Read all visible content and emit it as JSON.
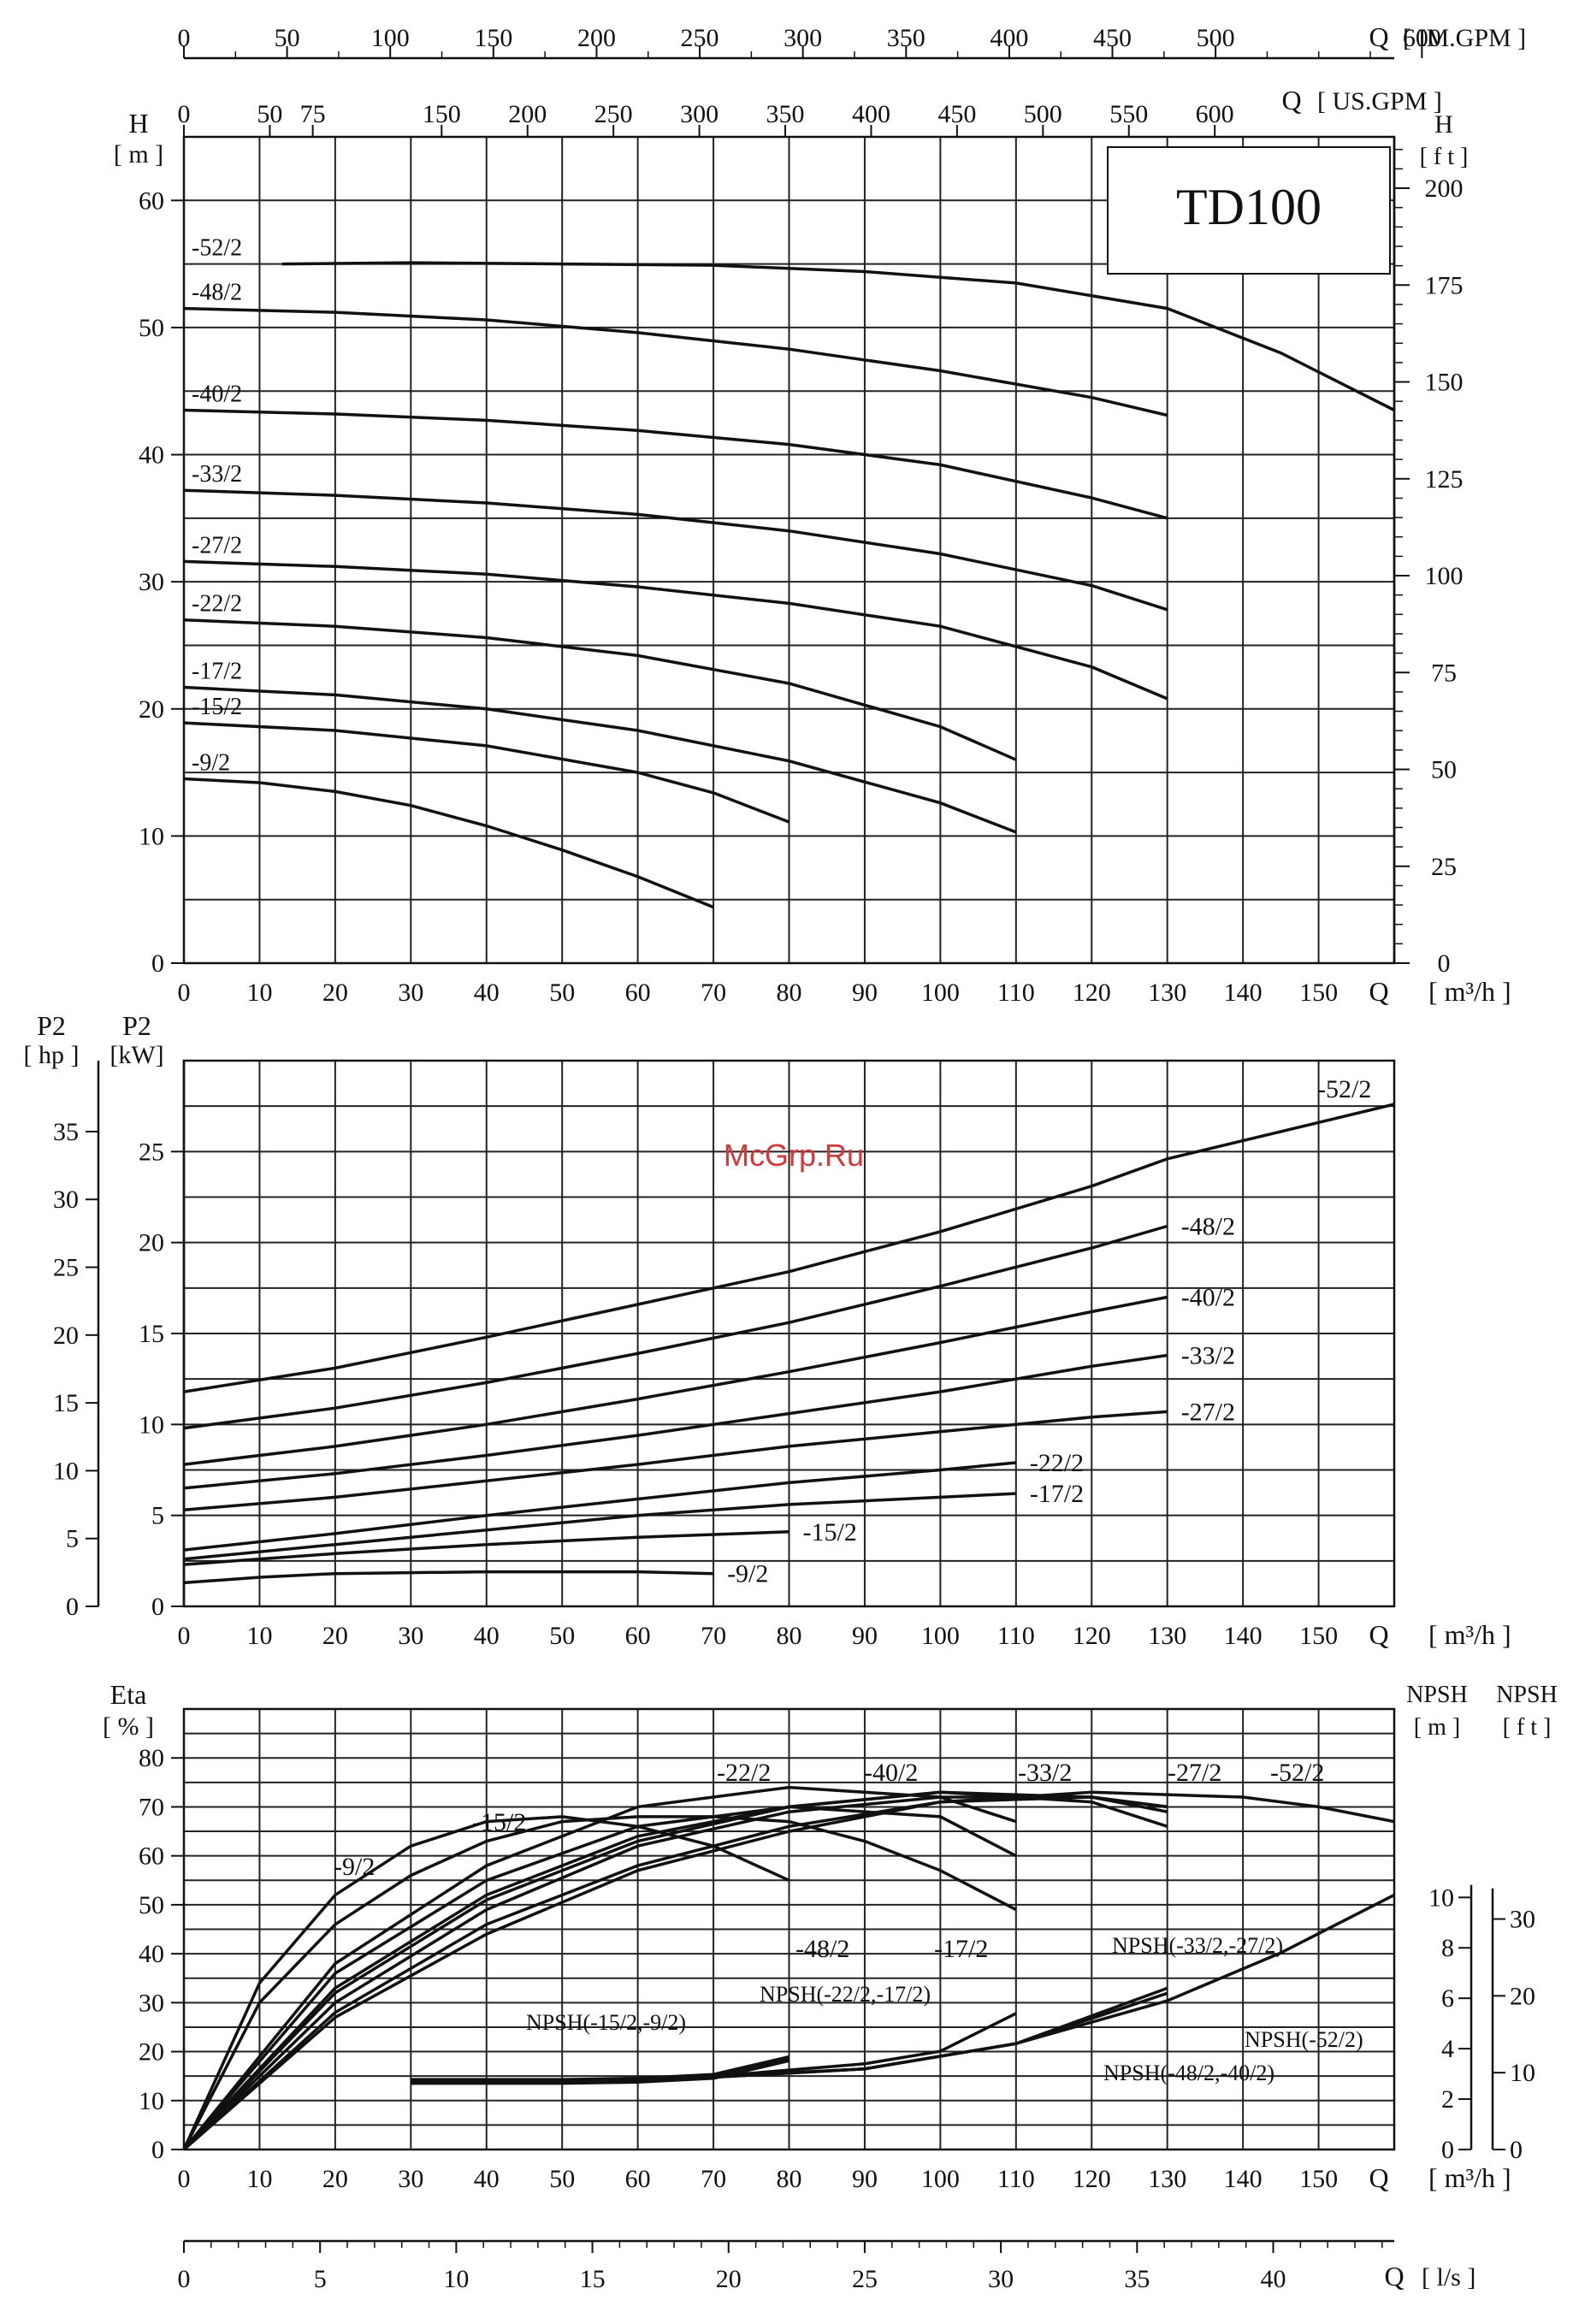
{
  "figure": {
    "model_label": "TD100",
    "watermark": "McGrp.Ru"
  },
  "chart_data": [
    {
      "id": "head",
      "type": "line",
      "title": "",
      "xlabel": "Q [ m³/h ]",
      "x_unit_prefix": "Q",
      "x_unit": "[ m³/h ]",
      "x_ticks": [
        0,
        10,
        20,
        30,
        40,
        50,
        60,
        70,
        80,
        90,
        100,
        110,
        120,
        130,
        140,
        150
      ],
      "xlim": [
        0,
        160
      ],
      "ylabel_left": [
        "H",
        "[ m ]"
      ],
      "y_ticks_left": [
        0,
        10,
        20,
        30,
        40,
        50,
        60
      ],
      "ylim": [
        0,
        65
      ],
      "ylabel_right": [
        "H",
        "[ f t ]"
      ],
      "y_ticks_right": [
        0,
        25,
        50,
        75,
        100,
        125,
        150,
        175,
        200
      ],
      "top_axis_1": {
        "label": "Q [ IM.GPM ]",
        "ticks": [
          0,
          50,
          100,
          150,
          200,
          250,
          300,
          350,
          400,
          450,
          500,
          600
        ]
      },
      "top_axis_2": {
        "label": "Q [ US.GPM ]",
        "ticks": [
          0,
          50,
          75,
          150,
          200,
          250,
          300,
          350,
          400,
          450,
          500,
          550,
          600
        ]
      },
      "grid": true,
      "series": [
        {
          "name": "-52/2",
          "x": [
            13,
            30,
            50,
            70,
            90,
            110,
            130,
            145,
            160
          ],
          "y": [
            55,
            55.1,
            55,
            54.9,
            54.4,
            53.5,
            51.5,
            48,
            43.5
          ]
        },
        {
          "name": "-48/2",
          "x": [
            0,
            20,
            40,
            60,
            80,
            100,
            120,
            130
          ],
          "y": [
            51.5,
            51.2,
            50.6,
            49.6,
            48.3,
            46.6,
            44.5,
            43.1
          ]
        },
        {
          "name": "-40/2",
          "x": [
            0,
            20,
            40,
            60,
            80,
            100,
            120,
            130
          ],
          "y": [
            43.5,
            43.2,
            42.7,
            41.9,
            40.8,
            39.2,
            36.6,
            35
          ]
        },
        {
          "name": "-33/2",
          "x": [
            0,
            20,
            40,
            60,
            80,
            100,
            120,
            130
          ],
          "y": [
            37.2,
            36.8,
            36.2,
            35.3,
            34,
            32.2,
            29.7,
            27.8
          ]
        },
        {
          "name": "-27/2",
          "x": [
            0,
            20,
            40,
            60,
            80,
            100,
            120,
            130
          ],
          "y": [
            31.6,
            31.2,
            30.6,
            29.6,
            28.3,
            26.5,
            23.3,
            20.8
          ]
        },
        {
          "name": "-22/2",
          "x": [
            0,
            20,
            40,
            60,
            80,
            100,
            110
          ],
          "y": [
            27,
            26.5,
            25.6,
            24.2,
            22,
            18.6,
            16
          ]
        },
        {
          "name": "-17/2",
          "x": [
            0,
            20,
            40,
            60,
            80,
            100,
            110
          ],
          "y": [
            21.7,
            21.1,
            20,
            18.3,
            15.9,
            12.6,
            10.3
          ]
        },
        {
          "name": "-15/2",
          "x": [
            0,
            20,
            40,
            60,
            70,
            80
          ],
          "y": [
            18.9,
            18.3,
            17.1,
            15,
            13.4,
            11.1
          ]
        },
        {
          "name": "-9/2",
          "x": [
            0,
            10,
            20,
            30,
            40,
            50,
            60,
            70
          ],
          "y": [
            14.5,
            14.2,
            13.5,
            12.4,
            10.8,
            8.9,
            6.8,
            4.4
          ]
        }
      ]
    },
    {
      "id": "power",
      "type": "line",
      "title": "",
      "xlabel": "Q [ m³/h ]",
      "x_unit_prefix": "Q",
      "x_unit": "[ m³/h ]",
      "x_ticks": [
        0,
        10,
        20,
        30,
        40,
        50,
        60,
        70,
        80,
        90,
        100,
        110,
        120,
        130,
        140,
        150
      ],
      "xlim": [
        0,
        160
      ],
      "ylabel_right_inner": [
        "P2",
        "[kW]"
      ],
      "y_ticks_kw": [
        0,
        5,
        10,
        15,
        20,
        25
      ],
      "ylim_kw": [
        0,
        30
      ],
      "ylabel_left_outer": [
        "P2",
        "[ hp ]"
      ],
      "y_ticks_hp": [
        0,
        5,
        10,
        15,
        20,
        25,
        30,
        35
      ],
      "grid": true,
      "series": [
        {
          "name": "-52/2",
          "x": [
            0,
            20,
            40,
            60,
            80,
            100,
            120,
            130,
            140,
            150,
            160
          ],
          "y": [
            11.8,
            13.1,
            14.8,
            16.6,
            18.4,
            20.6,
            23.1,
            24.6,
            25.6,
            26.6,
            27.6
          ]
        },
        {
          "name": "-48/2",
          "x": [
            0,
            20,
            40,
            60,
            80,
            100,
            120,
            130
          ],
          "y": [
            9.8,
            10.9,
            12.3,
            13.9,
            15.6,
            17.6,
            19.7,
            20.9
          ]
        },
        {
          "name": "-40/2",
          "x": [
            0,
            20,
            40,
            60,
            80,
            100,
            120,
            130
          ],
          "y": [
            7.8,
            8.8,
            10,
            11.4,
            12.9,
            14.5,
            16.2,
            17
          ]
        },
        {
          "name": "-33/2",
          "x": [
            0,
            20,
            40,
            60,
            80,
            100,
            120,
            130
          ],
          "y": [
            6.5,
            7.3,
            8.3,
            9.4,
            10.6,
            11.8,
            13.2,
            13.8
          ]
        },
        {
          "name": "-27/2",
          "x": [
            0,
            20,
            40,
            60,
            80,
            100,
            120,
            130
          ],
          "y": [
            5.3,
            6,
            6.9,
            7.8,
            8.8,
            9.6,
            10.4,
            10.7
          ]
        },
        {
          "name": "-22/2",
          "x": [
            0,
            20,
            40,
            60,
            80,
            100,
            110
          ],
          "y": [
            3.1,
            4,
            5,
            5.9,
            6.8,
            7.5,
            7.9
          ]
        },
        {
          "name": "-17/2",
          "x": [
            0,
            20,
            40,
            60,
            80,
            100,
            110
          ],
          "y": [
            2.6,
            3.4,
            4.2,
            5,
            5.6,
            6,
            6.2
          ]
        },
        {
          "name": "-15/2",
          "x": [
            0,
            20,
            40,
            60,
            80
          ],
          "y": [
            2.3,
            2.9,
            3.4,
            3.8,
            4.1
          ]
        },
        {
          "name": "-9/2",
          "x": [
            0,
            10,
            20,
            40,
            60,
            70
          ],
          "y": [
            1.3,
            1.6,
            1.8,
            1.9,
            1.9,
            1.8
          ]
        }
      ]
    },
    {
      "id": "efficiency-npsh",
      "type": "line",
      "title": "",
      "xlabel": "Q [ m³/h ]",
      "x_unit_prefix": "Q",
      "x_unit": "[ m³/h ]",
      "x_ticks": [
        0,
        10,
        20,
        30,
        40,
        50,
        60,
        70,
        80,
        90,
        100,
        110,
        120,
        130,
        140,
        150
      ],
      "xlim": [
        0,
        160
      ],
      "ylabel_left": [
        "Eta",
        "[ % ]"
      ],
      "y_ticks_eta": [
        0,
        10,
        20,
        30,
        40,
        50,
        60,
        70,
        80
      ],
      "ylim_eta": [
        0,
        90
      ],
      "ylabel_npsh_m": [
        "NPSH",
        "[ m ]"
      ],
      "y_ticks_npsh_m": [
        0,
        2,
        4,
        6,
        8,
        10
      ],
      "ylabel_npsh_ft": [
        "NPSH",
        "[ f t ]"
      ],
      "y_ticks_npsh_ft": [
        0,
        10,
        20,
        30
      ],
      "bottom_axis": {
        "label": "Q [ l/s ]",
        "unit_prefix": "Q",
        "unit": "[ l/s ]",
        "ticks": [
          0,
          5,
          10,
          15,
          20,
          25,
          30,
          35,
          40
        ]
      },
      "grid": true,
      "series": [
        {
          "name": "-9/2",
          "x": [
            0,
            10,
            20,
            30,
            40,
            50,
            60,
            70,
            80
          ],
          "y": [
            0,
            34,
            52,
            62,
            67,
            68,
            66,
            62,
            55
          ]
        },
        {
          "name": "-15/2",
          "x": [
            0,
            10,
            20,
            30,
            40,
            50,
            60,
            70,
            80,
            90,
            100,
            110
          ],
          "y": [
            0,
            30,
            46,
            56,
            63,
            67,
            68,
            68,
            67,
            63,
            57,
            49
          ]
        },
        {
          "name": "-17/2",
          "x": [
            0,
            20,
            40,
            60,
            80,
            100,
            110
          ],
          "y": [
            0,
            36,
            55,
            66,
            70,
            68,
            60
          ]
        },
        {
          "name": "-22/2",
          "x": [
            0,
            20,
            40,
            60,
            80,
            100,
            110
          ],
          "y": [
            0,
            38,
            58,
            70,
            74,
            72,
            67
          ]
        },
        {
          "name": "-48/2",
          "x": [
            0,
            20,
            40,
            60,
            80,
            100,
            120,
            130
          ],
          "y": [
            0,
            28,
            46,
            58,
            66,
            71,
            72,
            70
          ]
        },
        {
          "name": "-40/2",
          "x": [
            0,
            20,
            40,
            60,
            80,
            100,
            120,
            130
          ],
          "y": [
            0,
            30,
            49,
            62,
            69,
            72,
            72,
            69
          ]
        },
        {
          "name": "-33/2",
          "x": [
            0,
            20,
            40,
            60,
            80,
            100,
            120,
            130
          ],
          "y": [
            0,
            32,
            51,
            63,
            70,
            73,
            72,
            70
          ]
        },
        {
          "name": "-27/2",
          "x": [
            0,
            20,
            40,
            60,
            80,
            100,
            120,
            130
          ],
          "y": [
            0,
            33,
            52,
            64,
            70,
            73,
            71,
            66
          ]
        },
        {
          "name": "-52/2",
          "x": [
            0,
            20,
            40,
            60,
            80,
            100,
            120,
            140,
            150,
            160
          ],
          "y": [
            0,
            27,
            44,
            57,
            65,
            71,
            73,
            72,
            70,
            67
          ]
        },
        {
          "name": "NPSH(-15/2,-9/2)",
          "unit": "m",
          "x": [
            30,
            40,
            50,
            60,
            70,
            80
          ],
          "y": [
            2.7,
            2.7,
            2.7,
            2.75,
            2.9,
            3.6
          ]
        },
        {
          "name": "NPSH(-22/2,-17/2)",
          "unit": "m",
          "x": [
            30,
            50,
            70,
            90,
            100,
            110
          ],
          "y": [
            2.7,
            2.75,
            2.9,
            3.4,
            3.9,
            5.4
          ]
        },
        {
          "name": "NPSH(-48/2,-40/2)",
          "unit": "m",
          "x": [
            30,
            60,
            90,
            110,
            120,
            130
          ],
          "y": [
            2.65,
            2.7,
            3.2,
            4.2,
            5.2,
            6.2
          ]
        },
        {
          "name": "NPSH(-33/2,-27/2)",
          "unit": "m",
          "x": [
            30,
            60,
            90,
            110,
            120,
            130
          ],
          "y": [
            2.65,
            2.7,
            3.2,
            4.2,
            5.3,
            6.4
          ]
        },
        {
          "name": "NPSH(-52/2)",
          "unit": "m",
          "x": [
            30,
            60,
            90,
            110,
            130,
            145,
            160
          ],
          "y": [
            2.7,
            2.75,
            3.2,
            4.2,
            5.9,
            7.8,
            10.1
          ]
        }
      ]
    }
  ]
}
